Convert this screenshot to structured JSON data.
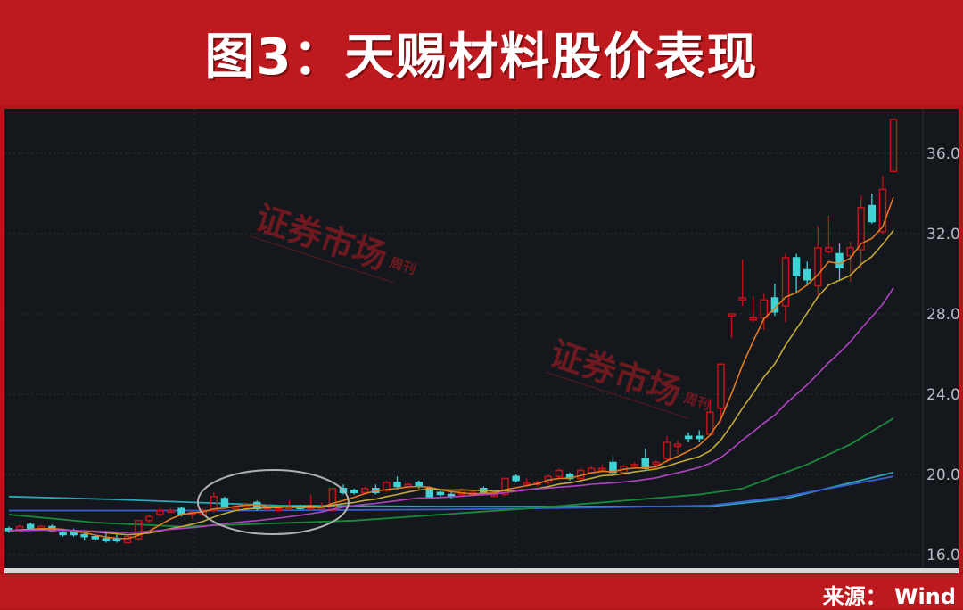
{
  "header": {
    "title": "图3：天赐材料股价表现"
  },
  "footer": {
    "source": "来源： Wind"
  },
  "watermark": {
    "main": "证券市场",
    "sub": "周刊"
  },
  "colors": {
    "up": "#c0141a",
    "down": "#3fd3d6",
    "background": "#14171c",
    "frame": "#bd1a1f",
    "ma5": "#e07a1f",
    "ma10": "#c2a935",
    "ma20": "#b043c4",
    "ma_long_green": "#1a8a3a",
    "ma_long_blue": "#3a5fd0",
    "ma_long_teal": "#2aa6b4",
    "annotation": "#b0b0b0"
  },
  "chart_data": {
    "type": "candlestick",
    "title": "",
    "xlabel": "",
    "ylabel": "",
    "ylim": [
      15.9,
      38.2
    ],
    "y_axis_side": "right",
    "yticks": [
      "16.0",
      "20.0",
      "24.0",
      "28.0",
      "32.0",
      "36.0"
    ],
    "grid": true,
    "legend": "none",
    "ohlc": [
      [
        17.3,
        17.4,
        17.1,
        17.2
      ],
      [
        17.2,
        17.5,
        17.1,
        17.4
      ],
      [
        17.5,
        17.6,
        17.2,
        17.3
      ],
      [
        17.3,
        17.5,
        17.2,
        17.4
      ],
      [
        17.4,
        17.5,
        17.2,
        17.2
      ],
      [
        17.1,
        17.2,
        16.9,
        17.0
      ],
      [
        17.2,
        17.3,
        16.9,
        17.0
      ],
      [
        17.0,
        17.1,
        16.7,
        16.9
      ],
      [
        16.9,
        17.0,
        16.7,
        16.8
      ],
      [
        16.8,
        17.1,
        16.6,
        16.7
      ],
      [
        16.8,
        17.0,
        16.6,
        16.7
      ],
      [
        16.6,
        17.0,
        16.6,
        16.9
      ],
      [
        16.8,
        17.7,
        16.7,
        17.7
      ],
      [
        17.7,
        18.0,
        17.6,
        17.9
      ],
      [
        18.0,
        18.4,
        17.9,
        18.2
      ],
      [
        18.2,
        18.3,
        18.1,
        18.2
      ],
      [
        18.3,
        18.4,
        17.9,
        18.0
      ],
      [
        18.1,
        18.2,
        17.8,
        18.1
      ],
      [
        18.0,
        18.3,
        17.9,
        18.2
      ],
      [
        18.2,
        19.1,
        18.1,
        18.9
      ],
      [
        18.8,
        18.9,
        18.4,
        18.4
      ],
      [
        18.3,
        18.5,
        18.2,
        18.4
      ],
      [
        18.4,
        18.6,
        18.3,
        18.5
      ],
      [
        18.6,
        18.7,
        18.2,
        18.3
      ],
      [
        18.3,
        18.5,
        18.2,
        18.4
      ],
      [
        18.3,
        18.4,
        18.2,
        18.3
      ],
      [
        18.3,
        18.7,
        18.2,
        18.4
      ],
      [
        18.4,
        18.5,
        18.2,
        18.3
      ],
      [
        18.3,
        19.0,
        18.2,
        18.4
      ],
      [
        18.4,
        18.6,
        18.3,
        18.4
      ],
      [
        18.2,
        19.3,
        18.2,
        19.3
      ],
      [
        19.3,
        19.5,
        19.0,
        19.1
      ],
      [
        19.2,
        19.3,
        19.0,
        19.1
      ],
      [
        19.1,
        19.4,
        19.0,
        19.3
      ],
      [
        19.3,
        19.5,
        19.0,
        19.1
      ],
      [
        19.2,
        19.7,
        19.1,
        19.6
      ],
      [
        19.6,
        19.9,
        19.3,
        19.4
      ],
      [
        19.4,
        19.6,
        19.3,
        19.5
      ],
      [
        19.6,
        19.7,
        19.3,
        19.4
      ],
      [
        19.3,
        19.4,
        18.8,
        18.9
      ],
      [
        19.1,
        19.2,
        18.9,
        19.0
      ],
      [
        19.0,
        19.1,
        18.8,
        18.9
      ],
      [
        19.0,
        19.3,
        18.9,
        19.2
      ],
      [
        19.0,
        19.2,
        18.9,
        19.1
      ],
      [
        19.3,
        19.4,
        19.0,
        19.1
      ],
      [
        19.0,
        19.1,
        18.9,
        19.0
      ],
      [
        19.0,
        19.8,
        18.9,
        19.8
      ],
      [
        19.9,
        20.0,
        19.6,
        19.7
      ],
      [
        19.6,
        19.8,
        19.5,
        19.6
      ],
      [
        19.5,
        19.7,
        19.4,
        19.6
      ],
      [
        19.6,
        20.0,
        19.5,
        19.9
      ],
      [
        19.9,
        20.3,
        19.8,
        20.2
      ],
      [
        20.0,
        20.1,
        19.7,
        19.8
      ],
      [
        19.8,
        20.3,
        19.7,
        20.2
      ],
      [
        20.1,
        20.4,
        20.0,
        20.3
      ],
      [
        20.3,
        20.5,
        20.2,
        20.3
      ],
      [
        20.6,
        20.9,
        20.0,
        20.1
      ],
      [
        20.1,
        20.5,
        20.0,
        20.4
      ],
      [
        20.5,
        20.6,
        20.4,
        20.5
      ],
      [
        20.8,
        21.3,
        20.2,
        20.3
      ],
      [
        20.5,
        20.7,
        20.3,
        20.6
      ],
      [
        20.8,
        21.9,
        20.6,
        21.6
      ],
      [
        21.4,
        21.7,
        21.0,
        21.5
      ],
      [
        21.9,
        22.1,
        21.6,
        21.8
      ],
      [
        21.9,
        22.2,
        21.6,
        21.8
      ],
      [
        22.0,
        23.7,
        21.9,
        23.1
      ],
      [
        23.3,
        25.5,
        22.6,
        25.5
      ],
      [
        27.9,
        28.0,
        26.8,
        28.0
      ],
      [
        28.7,
        30.7,
        28.4,
        28.8
      ],
      [
        27.7,
        28.9,
        27.6,
        27.8
      ],
      [
        27.8,
        29.0,
        27.2,
        28.7
      ],
      [
        28.8,
        29.5,
        27.9,
        28.1
      ],
      [
        28.4,
        31.0,
        27.6,
        30.8
      ],
      [
        30.8,
        31.0,
        29.0,
        29.9
      ],
      [
        30.2,
        30.6,
        29.4,
        29.7
      ],
      [
        29.4,
        32.4,
        28.8,
        31.3
      ],
      [
        31.1,
        32.9,
        31.0,
        31.3
      ],
      [
        31.0,
        31.5,
        29.7,
        30.3
      ],
      [
        30.9,
        31.6,
        29.6,
        31.3
      ],
      [
        31.2,
        33.9,
        30.3,
        33.3
      ],
      [
        33.4,
        34.0,
        32.5,
        32.6
      ],
      [
        32.1,
        34.9,
        32.0,
        34.2
      ],
      [
        35.1,
        37.7,
        35.1,
        37.7
      ]
    ],
    "moving_averages_computed": [
      {
        "window": 5,
        "color_key": "ma5"
      },
      {
        "window": 10,
        "color_key": "ma10"
      },
      {
        "window": 20,
        "color_key": "ma20"
      }
    ],
    "long_lines": [
      {
        "color_key": "ma_long_teal",
        "points": [
          [
            0,
            18.9
          ],
          [
            10,
            18.75
          ],
          [
            25,
            18.45
          ],
          [
            40,
            18.4
          ],
          [
            55,
            18.4
          ],
          [
            65,
            18.4
          ],
          [
            72,
            18.8
          ],
          [
            82,
            20.1
          ]
        ]
      },
      {
        "color_key": "ma_long_blue",
        "points": [
          [
            0,
            18.2
          ],
          [
            20,
            18.2
          ],
          [
            40,
            18.25
          ],
          [
            55,
            18.35
          ],
          [
            65,
            18.45
          ],
          [
            72,
            18.9
          ],
          [
            82,
            19.9
          ]
        ]
      },
      {
        "color_key": "ma_long_green",
        "points": [
          [
            0,
            18.0
          ],
          [
            8,
            17.6
          ],
          [
            16,
            17.4
          ],
          [
            32,
            17.7
          ],
          [
            48,
            18.3
          ],
          [
            64,
            19.0
          ],
          [
            68,
            19.3
          ],
          [
            74,
            20.5
          ],
          [
            78,
            21.5
          ],
          [
            82,
            22.8
          ]
        ]
      }
    ],
    "annotation": {
      "type": "ellipse",
      "around_candles": [
        19,
        30
      ]
    }
  }
}
